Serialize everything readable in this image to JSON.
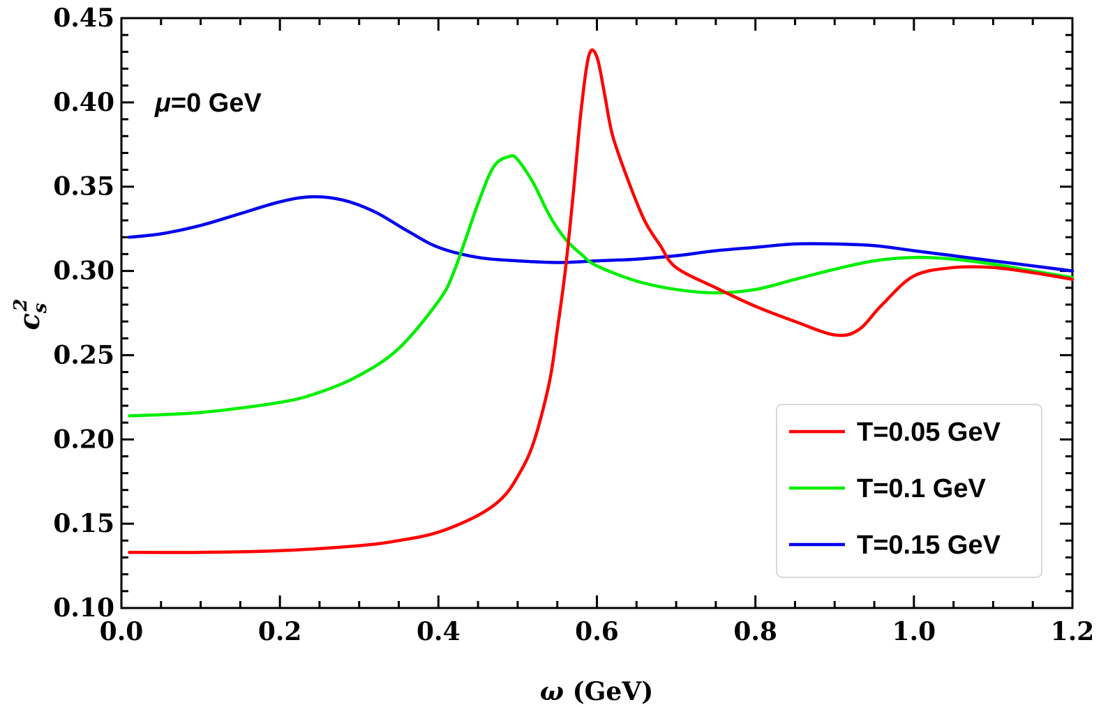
{
  "chart_data": {
    "type": "line",
    "title": "",
    "xlabel": "ω (GeV)",
    "ylabel": "c_s^2",
    "ylabel_parts": {
      "base": "c",
      "sub": "s",
      "sup": "2"
    },
    "xlabel_parts": {
      "symbol": "ω",
      "unit": " (GeV)"
    },
    "xlim": [
      0.0,
      1.2
    ],
    "ylim": [
      0.1,
      0.45
    ],
    "xticks": [
      0.0,
      0.2,
      0.4,
      0.6,
      0.8,
      1.0,
      1.2
    ],
    "xtick_labels": [
      "0.0",
      "0.2",
      "0.4",
      "0.6",
      "0.8",
      "1.0",
      "1.2"
    ],
    "yticks": [
      0.1,
      0.15,
      0.2,
      0.25,
      0.3,
      0.35,
      0.4,
      0.45
    ],
    "ytick_labels": [
      "0.10",
      "0.15",
      "0.20",
      "0.25",
      "0.30",
      "0.35",
      "0.40",
      "0.45"
    ],
    "grid": false,
    "legend_position": "bottom-right",
    "annotation": {
      "symbol": "μ",
      "rest": "=0 GeV"
    },
    "series": [
      {
        "name": "T=0.05 GeV",
        "color": "#ff0000",
        "x": [
          0.01,
          0.1,
          0.2,
          0.3,
          0.35,
          0.4,
          0.45,
          0.48,
          0.5,
          0.52,
          0.54,
          0.55,
          0.56,
          0.57,
          0.58,
          0.59,
          0.6,
          0.61,
          0.62,
          0.64,
          0.66,
          0.68,
          0.7,
          0.75,
          0.8,
          0.85,
          0.9,
          0.93,
          0.96,
          1.0,
          1.05,
          1.1,
          1.15,
          1.2
        ],
        "y": [
          0.133,
          0.133,
          0.134,
          0.137,
          0.14,
          0.145,
          0.155,
          0.165,
          0.178,
          0.198,
          0.234,
          0.265,
          0.3,
          0.345,
          0.395,
          0.428,
          0.427,
          0.404,
          0.38,
          0.353,
          0.33,
          0.315,
          0.302,
          0.29,
          0.279,
          0.27,
          0.262,
          0.265,
          0.28,
          0.297,
          0.302,
          0.302,
          0.299,
          0.295
        ]
      },
      {
        "name": "T=0.1 GeV",
        "color": "#00ee00",
        "x": [
          0.01,
          0.1,
          0.2,
          0.25,
          0.3,
          0.35,
          0.4,
          0.42,
          0.45,
          0.47,
          0.49,
          0.5,
          0.52,
          0.54,
          0.56,
          0.58,
          0.6,
          0.65,
          0.7,
          0.75,
          0.8,
          0.85,
          0.9,
          0.95,
          1.0,
          1.05,
          1.1,
          1.15,
          1.2
        ],
        "y": [
          0.214,
          0.216,
          0.222,
          0.228,
          0.238,
          0.254,
          0.282,
          0.3,
          0.34,
          0.362,
          0.368,
          0.366,
          0.352,
          0.333,
          0.319,
          0.31,
          0.303,
          0.294,
          0.289,
          0.287,
          0.289,
          0.295,
          0.301,
          0.306,
          0.308,
          0.307,
          0.304,
          0.3,
          0.296
        ]
      },
      {
        "name": "T=0.15 GeV",
        "color": "#0000ee",
        "x": [
          0.01,
          0.05,
          0.1,
          0.15,
          0.2,
          0.24,
          0.28,
          0.32,
          0.36,
          0.4,
          0.45,
          0.5,
          0.55,
          0.6,
          0.65,
          0.7,
          0.75,
          0.8,
          0.85,
          0.9,
          0.95,
          1.0,
          1.05,
          1.1,
          1.15,
          1.2
        ],
        "y": [
          0.32,
          0.322,
          0.327,
          0.334,
          0.341,
          0.344,
          0.342,
          0.335,
          0.324,
          0.314,
          0.308,
          0.306,
          0.305,
          0.306,
          0.307,
          0.309,
          0.312,
          0.314,
          0.316,
          0.316,
          0.315,
          0.312,
          0.309,
          0.306,
          0.303,
          0.3
        ]
      }
    ]
  }
}
